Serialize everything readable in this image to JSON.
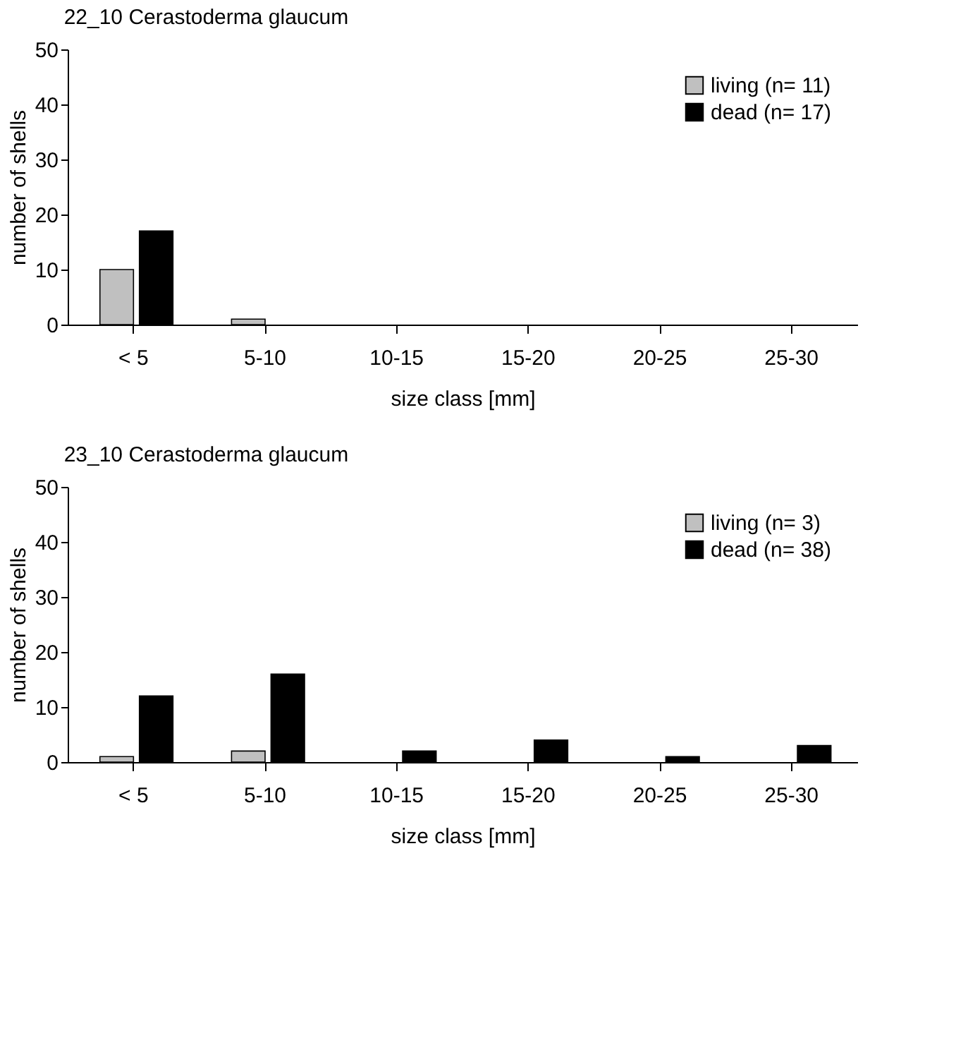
{
  "chart_data": [
    {
      "type": "bar",
      "title": "22_10 Cerastoderma glaucum",
      "xlabel": "size class [mm]",
      "ylabel": "number of shells",
      "categories": [
        "< 5",
        "5-10",
        "10-15",
        "15-20",
        "20-25",
        "25-30"
      ],
      "series": [
        {
          "name": "living (n= 11)",
          "color": "#c0c0c0",
          "values": [
            10,
            1,
            0,
            0,
            0,
            0
          ]
        },
        {
          "name": "dead (n= 17)",
          "color": "#000000",
          "values": [
            17,
            0,
            0,
            0,
            0,
            0
          ]
        }
      ],
      "ylim": [
        0,
        50
      ],
      "yticks": [
        0,
        10,
        20,
        30,
        40,
        50
      ],
      "grid": false,
      "legend": "top right"
    },
    {
      "type": "bar",
      "title": "23_10 Cerastoderma glaucum",
      "xlabel": "size class [mm]",
      "ylabel": "number of shells",
      "categories": [
        "< 5",
        "5-10",
        "10-15",
        "15-20",
        "20-25",
        "25-30"
      ],
      "series": [
        {
          "name": "living (n= 3)",
          "color": "#c0c0c0",
          "values": [
            1,
            2,
            0,
            0,
            0,
            0
          ]
        },
        {
          "name": "dead (n= 38)",
          "color": "#000000",
          "values": [
            12,
            16,
            2,
            4,
            1,
            3
          ]
        }
      ],
      "ylim": [
        0,
        50
      ],
      "yticks": [
        0,
        10,
        20,
        30,
        40,
        50
      ],
      "grid": false,
      "legend": "top right"
    }
  ]
}
